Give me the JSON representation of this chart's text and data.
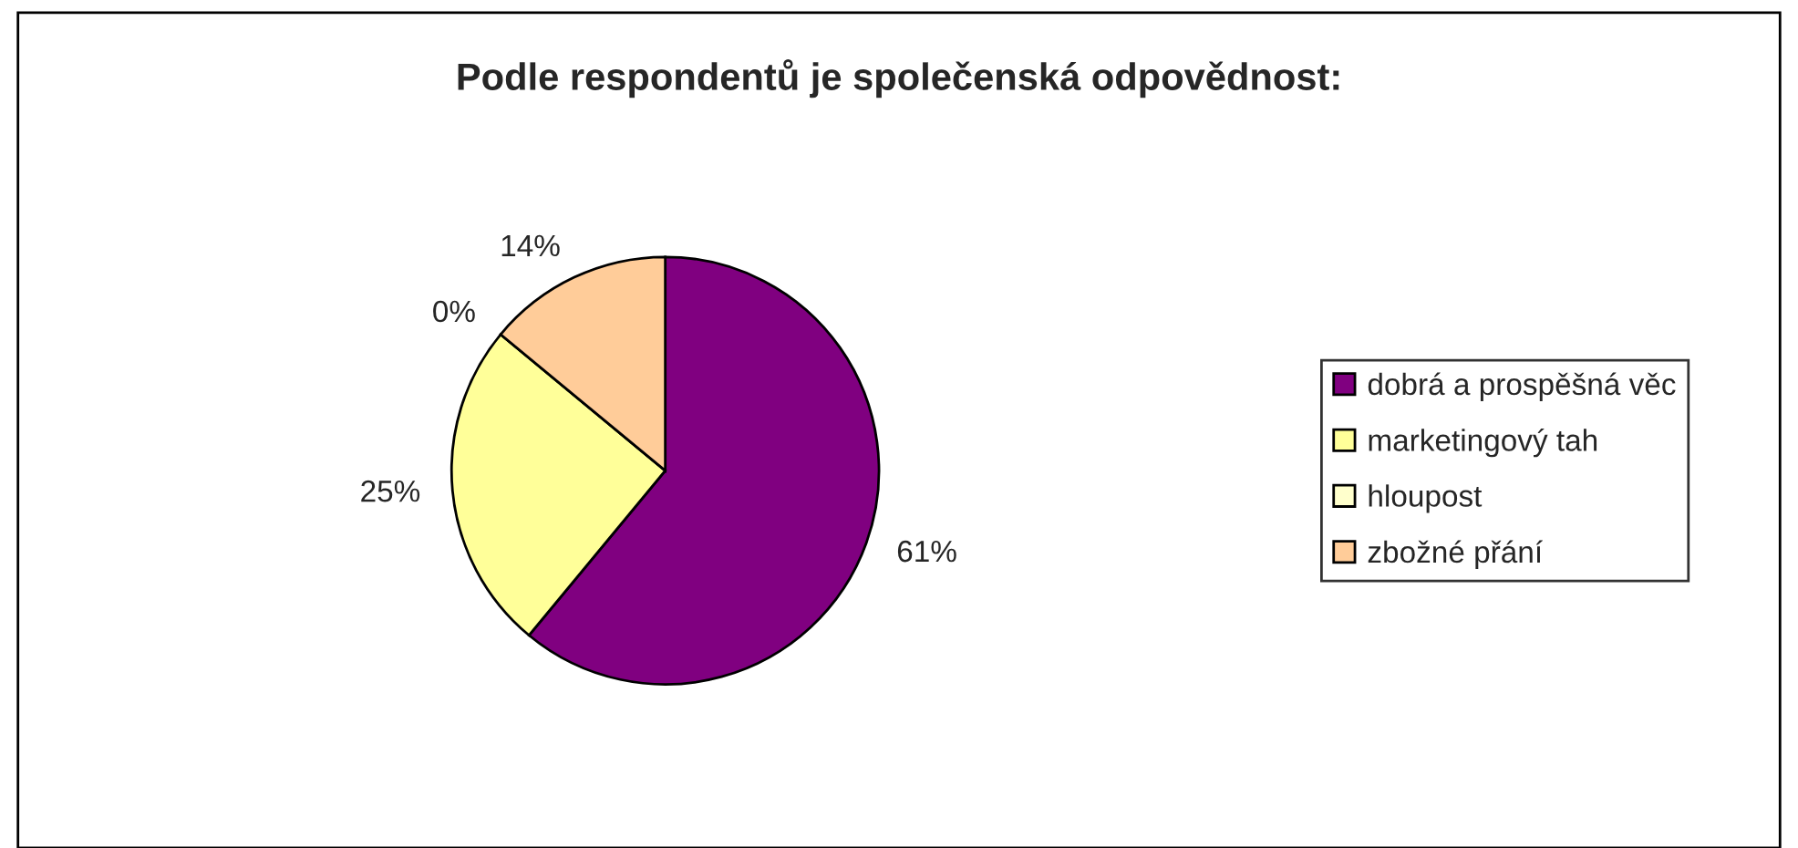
{
  "chart_data": {
    "type": "pie",
    "title": "Podle respondentů je společenská odpovědnost:",
    "categories": [
      "dobrá a prospěšná věc",
      "marketingový tah",
      "hloupost",
      "zbožné přání"
    ],
    "values": [
      61,
      25,
      0,
      14
    ],
    "value_labels": [
      "61%",
      "25%",
      "0%",
      "14%"
    ],
    "colors": [
      "#800080",
      "#ffff99",
      "#ffffcc",
      "#ffcc99"
    ],
    "legend": "right"
  }
}
